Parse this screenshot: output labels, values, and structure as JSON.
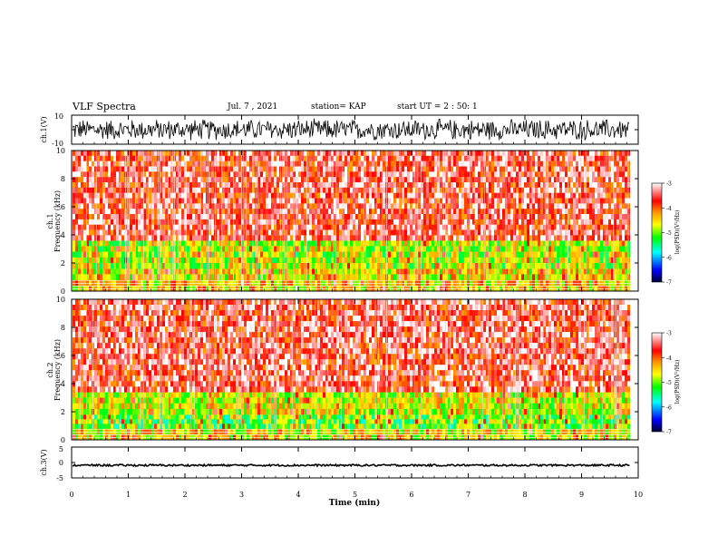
{
  "header": {
    "title": "VLF Spectra",
    "date": "Jul. 7 , 2021",
    "station": "station= KAP",
    "start": "start UT = 2 : 50: 1"
  },
  "chart_data": [
    {
      "type": "line",
      "panel": "ch1-waveform",
      "ylabel": "ch.1(V)",
      "ylim": [
        -10,
        10
      ],
      "y_ticks": [
        "10",
        "-10"
      ],
      "xlim": [
        0,
        10
      ],
      "x": [
        0,
        9.85
      ],
      "y_range": [
        -8,
        8
      ]
    },
    {
      "type": "heatmap",
      "panel": "ch1-spectrogram",
      "ylabel": "ch.1 Frequency (kHz)",
      "ylim": [
        0,
        10
      ],
      "y_ticks": [
        "0",
        "2",
        "4",
        "6",
        "8",
        "10"
      ],
      "xlim": [
        0,
        10
      ],
      "x_extent": [
        0,
        9.85
      ],
      "bands": [
        {
          "freq": [
            0,
            0.8
          ],
          "level": -4.5
        },
        {
          "freq": [
            0.8,
            1.6
          ],
          "level": -4.6
        },
        {
          "freq": [
            1.6,
            3.6
          ],
          "level": -4.8
        },
        {
          "freq": [
            3.6,
            10
          ],
          "level": -3.6
        }
      ],
      "colorbar": {
        "label": "log(PSD)(V²/Hz)",
        "range": [
          -7,
          -3
        ],
        "ticks": [
          "-3",
          "-4",
          "-5",
          "-6",
          "-7"
        ]
      }
    },
    {
      "type": "heatmap",
      "panel": "ch2-spectrogram",
      "ylabel": "ch.2 Frequency (kHz)",
      "ylim": [
        0,
        10
      ],
      "y_ticks": [
        "0",
        "2",
        "4",
        "6",
        "8",
        "10"
      ],
      "xlim": [
        0,
        10
      ],
      "x_extent": [
        0,
        9.85
      ],
      "bands": [
        {
          "freq": [
            0,
            0.8
          ],
          "level": -4.6
        },
        {
          "freq": [
            0.8,
            1.8
          ],
          "level": -5.1
        },
        {
          "freq": [
            1.8,
            3.4
          ],
          "level": -4.7
        },
        {
          "freq": [
            3.4,
            10
          ],
          "level": -3.6
        }
      ],
      "colorbar": {
        "label": "log(PSD)(V²/Hz)",
        "range": [
          -7,
          -3
        ],
        "ticks": [
          "-3",
          "-4",
          "-5",
          "-6",
          "-7"
        ]
      }
    },
    {
      "type": "line",
      "panel": "ch3-waveform",
      "ylabel": "ch.3(V)",
      "ylim": [
        -5,
        5
      ],
      "y_ticks": [
        "5",
        "0",
        "-5"
      ],
      "xlim": [
        0,
        10
      ],
      "x": [
        0,
        9.85
      ],
      "y_range": [
        -1.2,
        -0.6
      ]
    },
    {
      "type": "axis",
      "panel": "time-axis",
      "xlabel": "Time (min)",
      "xlim": [
        0,
        10
      ],
      "x_ticks": [
        "0",
        "1",
        "2",
        "3",
        "4",
        "5",
        "6",
        "7",
        "8",
        "9",
        "10"
      ]
    }
  ],
  "colors": {
    "red": "#ff1a1a",
    "orange": "#ff9900",
    "yellow": "#ffff00",
    "green": "#00ff00",
    "cyan": "#00ffff",
    "blue": "#0000ff",
    "navy": "#000066"
  }
}
